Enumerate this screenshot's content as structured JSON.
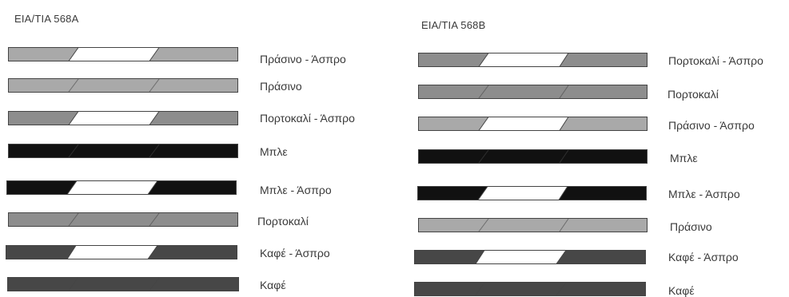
{
  "colors": {
    "green": "#a9a9a9",
    "orange": "#8d8d8d",
    "blue": "#111111",
    "brown": "#474747",
    "white": "#ffffff",
    "outline": "#444444"
  },
  "standards": [
    {
      "title": "EIA/TIA 568A",
      "wires": [
        {
          "label": "Πράσινο - Άσπρο",
          "color": "green",
          "striped": true
        },
        {
          "label": "Πράσινο",
          "color": "green",
          "striped": false
        },
        {
          "label": "Πορτοκαλί - Άσπρο",
          "color": "orange",
          "striped": true
        },
        {
          "label": "Μπλε",
          "color": "blue",
          "striped": false
        },
        {
          "label": "Μπλε - Άσπρο",
          "color": "blue",
          "striped": true
        },
        {
          "label": "Πορτοκαλί",
          "color": "orange",
          "striped": false
        },
        {
          "label": "Καφέ - Άσπρο",
          "color": "brown",
          "striped": true
        },
        {
          "label": "Καφέ",
          "color": "brown",
          "striped": false
        }
      ]
    },
    {
      "title": "EIA/TIA 568B",
      "wires": [
        {
          "label": "Πορτοκαλί - Άσπρο",
          "color": "orange",
          "striped": true
        },
        {
          "label": "Πορτοκαλί",
          "color": "orange",
          "striped": false
        },
        {
          "label": "Πράσινο - Άσπρο",
          "color": "green",
          "striped": true
        },
        {
          "label": "Μπλε",
          "color": "blue",
          "striped": false
        },
        {
          "label": "Μπλε - Άσπρο",
          "color": "blue",
          "striped": true
        },
        {
          "label": "Πράσινο",
          "color": "green",
          "striped": false
        },
        {
          "label": "Καφέ - Άσπρο",
          "color": "brown",
          "striped": true
        },
        {
          "label": "Καφέ",
          "color": "brown",
          "striped": false
        }
      ]
    }
  ]
}
